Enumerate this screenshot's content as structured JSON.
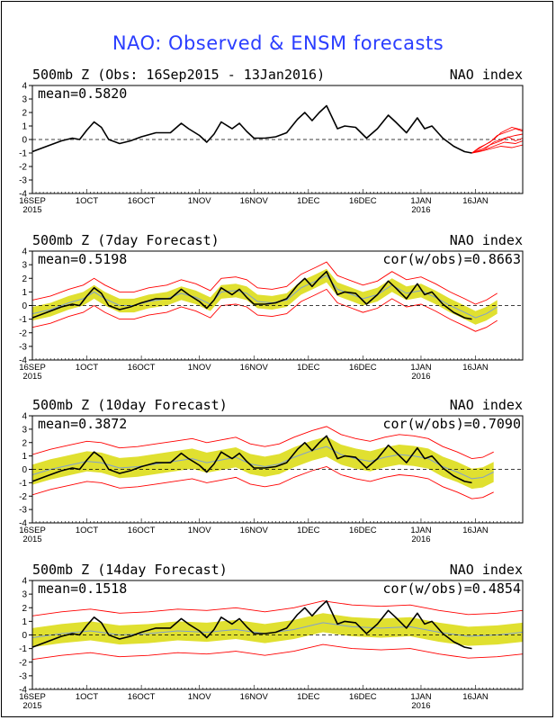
{
  "page_title": "NAO: Observed & ENSM forecasts",
  "colors": {
    "title": "#2a3dff",
    "observed": "#000000",
    "member": "#ff0000",
    "spread": "#e0e030",
    "mean": "#7f9fd0"
  },
  "x_ticks": [
    {
      "label": "16SEP",
      "sub": "2015",
      "day": 0
    },
    {
      "label": "1OCT",
      "sub": "",
      "day": 15
    },
    {
      "label": "16OCT",
      "sub": "",
      "day": 30
    },
    {
      "label": "1NOV",
      "sub": "",
      "day": 46
    },
    {
      "label": "16NOV",
      "sub": "",
      "day": 61
    },
    {
      "label": "1DEC",
      "sub": "",
      "day": 76
    },
    {
      "label": "16DEC",
      "sub": "",
      "day": 91
    },
    {
      "label": "1JAN",
      "sub": "2016",
      "day": 107
    },
    {
      "label": "16JAN",
      "sub": "",
      "day": 122
    }
  ],
  "chart_data": [
    {
      "type": "line",
      "title": "500mb Z (Obs: 16Sep2015 - 13Jan2016)",
      "index_label": "NAO index",
      "mean_label": "mean=0.5820",
      "cor_label": "",
      "ylim": [
        -4,
        4
      ],
      "xlim_days": [
        0,
        135
      ],
      "yticks": [
        -4,
        -3,
        -2,
        -1,
        0,
        1,
        2,
        3,
        4
      ],
      "observed": [
        [
          0,
          -0.9
        ],
        [
          4,
          -0.5
        ],
        [
          8,
          -0.1
        ],
        [
          11,
          0.1
        ],
        [
          13,
          0.0
        ],
        [
          15,
          0.7
        ],
        [
          17,
          1.3
        ],
        [
          19,
          0.9
        ],
        [
          21,
          0.0
        ],
        [
          24,
          -0.3
        ],
        [
          27,
          -0.1
        ],
        [
          30,
          0.2
        ],
        [
          34,
          0.5
        ],
        [
          38,
          0.5
        ],
        [
          41,
          1.2
        ],
        [
          43,
          0.8
        ],
        [
          46,
          0.3
        ],
        [
          48,
          -0.2
        ],
        [
          50,
          0.4
        ],
        [
          52,
          1.3
        ],
        [
          55,
          0.8
        ],
        [
          57,
          1.2
        ],
        [
          59,
          0.6
        ],
        [
          61,
          0.1
        ],
        [
          64,
          0.1
        ],
        [
          67,
          0.2
        ],
        [
          70,
          0.5
        ],
        [
          73,
          1.5
        ],
        [
          75,
          2.0
        ],
        [
          77,
          1.4
        ],
        [
          79,
          2.0
        ],
        [
          81,
          2.5
        ],
        [
          84,
          0.8
        ],
        [
          86,
          1.0
        ],
        [
          89,
          0.9
        ],
        [
          92,
          0.1
        ],
        [
          95,
          0.8
        ],
        [
          98,
          1.8
        ],
        [
          100,
          1.3
        ],
        [
          103,
          0.5
        ],
        [
          106,
          1.6
        ],
        [
          108,
          0.8
        ],
        [
          110,
          1.0
        ],
        [
          113,
          0.1
        ],
        [
          116,
          -0.5
        ],
        [
          119,
          -0.9
        ],
        [
          121,
          -1.0
        ]
      ],
      "members": [
        [
          [
            121,
            -1.0
          ],
          [
            123,
            -0.8
          ],
          [
            125,
            -0.6
          ],
          [
            127,
            -0.2
          ],
          [
            130,
            0.1
          ],
          [
            133,
            0.3
          ],
          [
            135,
            0.4
          ]
        ],
        [
          [
            121,
            -1.0
          ],
          [
            123,
            -0.6
          ],
          [
            126,
            -0.2
          ],
          [
            128,
            0.3
          ],
          [
            131,
            0.6
          ],
          [
            133,
            0.8
          ],
          [
            135,
            0.6
          ]
        ],
        [
          [
            121,
            -1.0
          ],
          [
            124,
            -0.7
          ],
          [
            126,
            -0.4
          ],
          [
            129,
            -0.1
          ],
          [
            131,
            0.2
          ],
          [
            133,
            -0.1
          ],
          [
            135,
            0.1
          ]
        ],
        [
          [
            121,
            -1.0
          ],
          [
            123,
            -0.9
          ],
          [
            126,
            -0.7
          ],
          [
            129,
            -0.5
          ],
          [
            132,
            -0.6
          ],
          [
            135,
            -0.4
          ]
        ],
        [
          [
            121,
            -1.0
          ],
          [
            124,
            -0.5
          ],
          [
            127,
            0.0
          ],
          [
            129,
            0.5
          ],
          [
            132,
            0.9
          ],
          [
            135,
            0.7
          ]
        ],
        [
          [
            121,
            -1.0
          ],
          [
            124,
            -0.8
          ],
          [
            127,
            -0.5
          ],
          [
            130,
            -0.2
          ],
          [
            133,
            -0.3
          ],
          [
            135,
            -0.1
          ]
        ]
      ]
    },
    {
      "type": "area",
      "title": "500mb Z (7day Forecast)",
      "index_label": "NAO index",
      "mean_label": "mean=0.5198",
      "cor_label": "cor(w/obs)=0.8663",
      "ylim": [
        -4,
        4
      ],
      "xlim_days": [
        0,
        135
      ],
      "yticks": [
        -4,
        -3,
        -2,
        -1,
        0,
        1,
        2,
        3,
        4
      ],
      "observed": [
        [
          0,
          -0.9
        ],
        [
          4,
          -0.5
        ],
        [
          8,
          -0.1
        ],
        [
          11,
          0.1
        ],
        [
          13,
          0.0
        ],
        [
          15,
          0.7
        ],
        [
          17,
          1.3
        ],
        [
          19,
          0.9
        ],
        [
          21,
          0.0
        ],
        [
          24,
          -0.3
        ],
        [
          27,
          -0.1
        ],
        [
          30,
          0.2
        ],
        [
          34,
          0.5
        ],
        [
          38,
          0.5
        ],
        [
          41,
          1.2
        ],
        [
          43,
          0.8
        ],
        [
          46,
          0.3
        ],
        [
          48,
          -0.2
        ],
        [
          50,
          0.4
        ],
        [
          52,
          1.3
        ],
        [
          55,
          0.8
        ],
        [
          57,
          1.2
        ],
        [
          59,
          0.6
        ],
        [
          61,
          0.1
        ],
        [
          64,
          0.1
        ],
        [
          67,
          0.2
        ],
        [
          70,
          0.5
        ],
        [
          73,
          1.5
        ],
        [
          75,
          2.0
        ],
        [
          77,
          1.4
        ],
        [
          79,
          2.0
        ],
        [
          81,
          2.5
        ],
        [
          84,
          0.8
        ],
        [
          86,
          1.0
        ],
        [
          89,
          0.9
        ],
        [
          92,
          0.1
        ],
        [
          95,
          0.8
        ],
        [
          98,
          1.8
        ],
        [
          100,
          1.3
        ],
        [
          103,
          0.5
        ],
        [
          106,
          1.6
        ],
        [
          108,
          0.8
        ],
        [
          110,
          1.0
        ],
        [
          113,
          0.1
        ],
        [
          116,
          -0.5
        ],
        [
          119,
          -0.9
        ],
        [
          121,
          -1.0
        ]
      ],
      "forecast_mean": [
        [
          0,
          -0.6
        ],
        [
          5,
          -0.3
        ],
        [
          10,
          0.2
        ],
        [
          14,
          0.5
        ],
        [
          17,
          1.0
        ],
        [
          20,
          0.5
        ],
        [
          24,
          0.0
        ],
        [
          28,
          0.0
        ],
        [
          32,
          0.3
        ],
        [
          37,
          0.5
        ],
        [
          41,
          0.9
        ],
        [
          45,
          0.6
        ],
        [
          49,
          0.1
        ],
        [
          52,
          1.0
        ],
        [
          56,
          1.1
        ],
        [
          59,
          0.9
        ],
        [
          62,
          0.3
        ],
        [
          66,
          0.2
        ],
        [
          70,
          0.4
        ],
        [
          74,
          1.3
        ],
        [
          78,
          1.8
        ],
        [
          81,
          2.2
        ],
        [
          84,
          1.2
        ],
        [
          87,
          0.9
        ],
        [
          91,
          0.5
        ],
        [
          95,
          0.8
        ],
        [
          99,
          1.5
        ],
        [
          103,
          0.9
        ],
        [
          107,
          1.1
        ],
        [
          111,
          0.6
        ],
        [
          115,
          0.0
        ],
        [
          119,
          -0.5
        ],
        [
          122,
          -0.9
        ],
        [
          125,
          -0.6
        ],
        [
          128,
          -0.1
        ]
      ],
      "spread_half": 0.5,
      "envelope_half": 1.0
    },
    {
      "type": "area",
      "title": "500mb Z (10day Forecast)",
      "index_label": "NAO index",
      "mean_label": "mean=0.3872",
      "cor_label": "cor(w/obs)=0.7090",
      "ylim": [
        -4,
        4
      ],
      "xlim_days": [
        0,
        135
      ],
      "yticks": [
        -4,
        -3,
        -2,
        -1,
        0,
        1,
        2,
        3,
        4
      ],
      "observed": [
        [
          0,
          -0.9
        ],
        [
          4,
          -0.5
        ],
        [
          8,
          -0.1
        ],
        [
          11,
          0.1
        ],
        [
          13,
          0.0
        ],
        [
          15,
          0.7
        ],
        [
          17,
          1.3
        ],
        [
          19,
          0.9
        ],
        [
          21,
          0.0
        ],
        [
          24,
          -0.3
        ],
        [
          27,
          -0.1
        ],
        [
          30,
          0.2
        ],
        [
          34,
          0.5
        ],
        [
          38,
          0.5
        ],
        [
          41,
          1.2
        ],
        [
          43,
          0.8
        ],
        [
          46,
          0.3
        ],
        [
          48,
          -0.2
        ],
        [
          50,
          0.4
        ],
        [
          52,
          1.3
        ],
        [
          55,
          0.8
        ],
        [
          57,
          1.2
        ],
        [
          59,
          0.6
        ],
        [
          61,
          0.1
        ],
        [
          64,
          0.1
        ],
        [
          67,
          0.2
        ],
        [
          70,
          0.5
        ],
        [
          73,
          1.5
        ],
        [
          75,
          2.0
        ],
        [
          77,
          1.4
        ],
        [
          79,
          2.0
        ],
        [
          81,
          2.5
        ],
        [
          84,
          0.8
        ],
        [
          86,
          1.0
        ],
        [
          89,
          0.9
        ],
        [
          92,
          0.1
        ],
        [
          95,
          0.8
        ],
        [
          98,
          1.8
        ],
        [
          100,
          1.3
        ],
        [
          103,
          0.5
        ],
        [
          106,
          1.6
        ],
        [
          108,
          0.8
        ],
        [
          110,
          1.0
        ],
        [
          113,
          0.1
        ],
        [
          116,
          -0.5
        ],
        [
          119,
          -0.9
        ],
        [
          121,
          -1.0
        ]
      ],
      "forecast_mean": [
        [
          0,
          -0.4
        ],
        [
          5,
          0.0
        ],
        [
          10,
          0.3
        ],
        [
          15,
          0.6
        ],
        [
          19,
          0.5
        ],
        [
          24,
          0.1
        ],
        [
          29,
          0.2
        ],
        [
          34,
          0.4
        ],
        [
          39,
          0.6
        ],
        [
          44,
          0.8
        ],
        [
          48,
          0.5
        ],
        [
          52,
          0.7
        ],
        [
          56,
          0.9
        ],
        [
          60,
          0.4
        ],
        [
          64,
          0.2
        ],
        [
          68,
          0.4
        ],
        [
          72,
          0.9
        ],
        [
          77,
          1.4
        ],
        [
          81,
          1.7
        ],
        [
          85,
          1.1
        ],
        [
          89,
          0.8
        ],
        [
          93,
          0.6
        ],
        [
          97,
          0.9
        ],
        [
          101,
          1.1
        ],
        [
          105,
          1.0
        ],
        [
          109,
          0.8
        ],
        [
          113,
          0.2
        ],
        [
          117,
          -0.2
        ],
        [
          121,
          -0.7
        ],
        [
          124,
          -0.6
        ],
        [
          127,
          -0.2
        ]
      ],
      "spread_half": 0.75,
      "envelope_half": 1.5
    },
    {
      "type": "area",
      "title": "500mb Z (14day Forecast)",
      "index_label": "NAO index",
      "mean_label": "mean=0.1518",
      "cor_label": "cor(w/obs)=0.4854",
      "ylim": [
        -4,
        4
      ],
      "xlim_days": [
        0,
        135
      ],
      "yticks": [
        -4,
        -3,
        -2,
        -1,
        0,
        1,
        2,
        3,
        4
      ],
      "observed": [
        [
          0,
          -0.9
        ],
        [
          4,
          -0.5
        ],
        [
          8,
          -0.1
        ],
        [
          11,
          0.1
        ],
        [
          13,
          0.0
        ],
        [
          15,
          0.7
        ],
        [
          17,
          1.3
        ],
        [
          19,
          0.9
        ],
        [
          21,
          0.0
        ],
        [
          24,
          -0.3
        ],
        [
          27,
          -0.1
        ],
        [
          30,
          0.2
        ],
        [
          34,
          0.5
        ],
        [
          38,
          0.5
        ],
        [
          41,
          1.2
        ],
        [
          43,
          0.8
        ],
        [
          46,
          0.3
        ],
        [
          48,
          -0.2
        ],
        [
          50,
          0.4
        ],
        [
          52,
          1.3
        ],
        [
          55,
          0.8
        ],
        [
          57,
          1.2
        ],
        [
          59,
          0.6
        ],
        [
          61,
          0.1
        ],
        [
          64,
          0.1
        ],
        [
          67,
          0.2
        ],
        [
          70,
          0.5
        ],
        [
          73,
          1.5
        ],
        [
          75,
          2.0
        ],
        [
          77,
          1.4
        ],
        [
          79,
          2.0
        ],
        [
          81,
          2.5
        ],
        [
          84,
          0.8
        ],
        [
          86,
          1.0
        ],
        [
          89,
          0.9
        ],
        [
          92,
          0.1
        ],
        [
          95,
          0.8
        ],
        [
          98,
          1.8
        ],
        [
          100,
          1.3
        ],
        [
          103,
          0.5
        ],
        [
          106,
          1.6
        ],
        [
          108,
          0.8
        ],
        [
          110,
          1.0
        ],
        [
          113,
          0.1
        ],
        [
          116,
          -0.5
        ],
        [
          119,
          -0.9
        ],
        [
          121,
          -1.0
        ]
      ],
      "forecast_mean": [
        [
          0,
          -0.2
        ],
        [
          8,
          0.1
        ],
        [
          16,
          0.3
        ],
        [
          24,
          0.0
        ],
        [
          32,
          0.1
        ],
        [
          40,
          0.3
        ],
        [
          48,
          0.2
        ],
        [
          56,
          0.4
        ],
        [
          64,
          0.1
        ],
        [
          72,
          0.4
        ],
        [
          80,
          0.9
        ],
        [
          88,
          0.6
        ],
        [
          96,
          0.5
        ],
        [
          104,
          0.6
        ],
        [
          112,
          0.2
        ],
        [
          120,
          -0.1
        ],
        [
          128,
          0.0
        ],
        [
          135,
          0.2
        ]
      ],
      "spread_half": 0.7,
      "envelope_half": 1.6
    }
  ]
}
